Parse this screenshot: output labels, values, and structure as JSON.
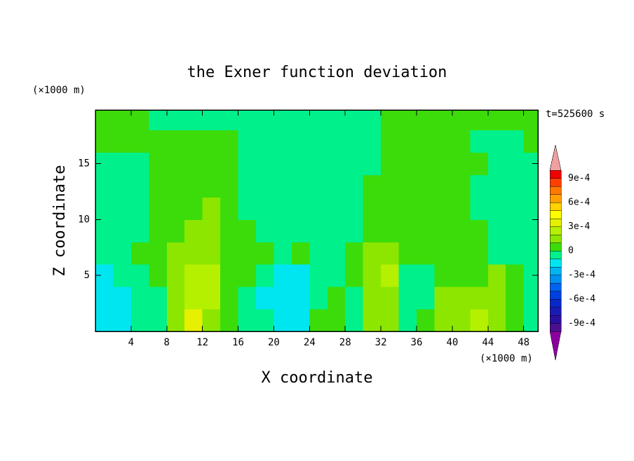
{
  "chart_data": {
    "type": "contour",
    "title": "the Exner function deviation",
    "x_label": "X coordinate",
    "y_label": "Z coordinate",
    "x_unit": "(×1000 m)",
    "y_unit": "(×1000 m)",
    "time_label": "t=525600 s",
    "xlim": [
      0,
      49.6
    ],
    "ylim": [
      0,
      19.8
    ],
    "xticks": [
      4,
      8,
      12,
      16,
      20,
      24,
      28,
      32,
      36,
      40,
      44,
      48
    ],
    "yticks": [
      5,
      10,
      15
    ],
    "x": [
      1,
      3,
      5,
      7,
      9,
      11,
      13,
      15,
      17,
      19,
      21,
      23,
      25,
      27,
      29,
      31,
      33,
      35,
      37,
      39,
      41,
      43,
      45,
      47,
      49
    ],
    "y": [
      1,
      3,
      5,
      7,
      9,
      11,
      13,
      15,
      17,
      19
    ],
    "z": [
      [
        -0.00015,
        -0.00015,
        -5e-05,
        -5e-05,
        0.00015,
        0.00035,
        0.00015,
        5e-05,
        -5e-05,
        -5e-05,
        -0.00015,
        -0.00015,
        5e-05,
        5e-05,
        -5e-05,
        0.00015,
        0.00015,
        -5e-05,
        5e-05,
        0.00015,
        0.00015,
        0.00025,
        0.00015,
        5e-05,
        -5e-05
      ],
      [
        -0.00015,
        -0.00015,
        -5e-05,
        -5e-05,
        0.00015,
        0.00025,
        0.00025,
        5e-05,
        -5e-05,
        -0.00015,
        -0.00015,
        -0.00015,
        -5e-05,
        5e-05,
        -5e-05,
        0.00015,
        0.00015,
        -5e-05,
        -5e-05,
        0.00015,
        0.00015,
        0.00015,
        0.00015,
        5e-05,
        -5e-05
      ],
      [
        -0.00015,
        -5e-05,
        -5e-05,
        5e-05,
        0.00015,
        0.00025,
        0.00025,
        5e-05,
        5e-05,
        -5e-05,
        -0.00015,
        -0.00015,
        -5e-05,
        -5e-05,
        5e-05,
        0.00015,
        0.00025,
        -5e-05,
        -5e-05,
        5e-05,
        5e-05,
        5e-05,
        0.00015,
        5e-05,
        -5e-05
      ],
      [
        -5e-05,
        -5e-05,
        5e-05,
        5e-05,
        0.00015,
        0.00015,
        0.00015,
        5e-05,
        5e-05,
        5e-05,
        -5e-05,
        5e-05,
        -5e-05,
        -5e-05,
        5e-05,
        0.00015,
        0.00015,
        5e-05,
        5e-05,
        5e-05,
        5e-05,
        5e-05,
        -5e-05,
        -5e-05,
        -5e-05
      ],
      [
        -5e-05,
        -5e-05,
        -5e-05,
        5e-05,
        5e-05,
        0.00015,
        0.00015,
        5e-05,
        5e-05,
        -5e-05,
        -5e-05,
        -5e-05,
        -5e-05,
        -5e-05,
        -5e-05,
        5e-05,
        5e-05,
        5e-05,
        5e-05,
        5e-05,
        5e-05,
        5e-05,
        -5e-05,
        -5e-05,
        -5e-05
      ],
      [
        -5e-05,
        -5e-05,
        -5e-05,
        5e-05,
        5e-05,
        5e-05,
        0.00015,
        5e-05,
        -5e-05,
        -5e-05,
        -5e-05,
        -5e-05,
        -5e-05,
        -5e-05,
        -5e-05,
        5e-05,
        5e-05,
        5e-05,
        5e-05,
        5e-05,
        5e-05,
        -5e-05,
        -5e-05,
        -5e-05,
        -5e-05
      ],
      [
        -5e-05,
        -5e-05,
        -5e-05,
        5e-05,
        5e-05,
        5e-05,
        5e-05,
        5e-05,
        -5e-05,
        -5e-05,
        -5e-05,
        -5e-05,
        -5e-05,
        -5e-05,
        -5e-05,
        5e-05,
        5e-05,
        5e-05,
        5e-05,
        5e-05,
        5e-05,
        -5e-05,
        -5e-05,
        -5e-05,
        -5e-05
      ],
      [
        -5e-05,
        -5e-05,
        -5e-05,
        5e-05,
        5e-05,
        5e-05,
        5e-05,
        5e-05,
        -5e-05,
        -5e-05,
        -5e-05,
        -5e-05,
        -5e-05,
        -5e-05,
        -5e-05,
        -5e-05,
        5e-05,
        5e-05,
        5e-05,
        5e-05,
        5e-05,
        5e-05,
        -5e-05,
        -5e-05,
        -5e-05
      ],
      [
        5e-05,
        5e-05,
        5e-05,
        5e-05,
        5e-05,
        5e-05,
        5e-05,
        5e-05,
        -5e-05,
        -5e-05,
        -5e-05,
        -5e-05,
        -5e-05,
        -5e-05,
        -5e-05,
        -5e-05,
        5e-05,
        5e-05,
        5e-05,
        5e-05,
        5e-05,
        -5e-05,
        -5e-05,
        -5e-05,
        5e-05
      ],
      [
        5e-05,
        5e-05,
        5e-05,
        -5e-05,
        -5e-05,
        -5e-05,
        -5e-05,
        -5e-05,
        -5e-05,
        -5e-05,
        -5e-05,
        -5e-05,
        -5e-05,
        -5e-05,
        -5e-05,
        -5e-05,
        5e-05,
        5e-05,
        5e-05,
        5e-05,
        5e-05,
        5e-05,
        5e-05,
        5e-05,
        5e-05
      ]
    ],
    "levels": [
      -0.001,
      -0.0009,
      -0.0008,
      -0.0007,
      -0.0006,
      -0.0005,
      -0.0004,
      -0.0003,
      -0.0002,
      -0.0001,
      0,
      0.0001,
      0.0002,
      0.0003,
      0.0004,
      0.0005,
      0.0006,
      0.0007,
      0.0008,
      0.0009,
      0.001
    ],
    "colors": [
      "#4b0f90",
      "#2a10a0",
      "#1a1ab4",
      "#0a28c8",
      "#0040e0",
      "#0064f0",
      "#0090f0",
      "#00b4f0",
      "#00e6f0",
      "#00f08c",
      "#3cdc0a",
      "#8ce600",
      "#b4f000",
      "#e6f000",
      "#ffff00",
      "#ffd200",
      "#ffa000",
      "#ff7800",
      "#ff4000",
      "#f00000"
    ],
    "over_color": "#f0a0a0",
    "under_color": "#8c00a0",
    "colorbar_ticks": [
      {
        "value": 0.0009,
        "label": "9e-4"
      },
      {
        "value": 0.0006,
        "label": "6e-4"
      },
      {
        "value": 0.0003,
        "label": "3e-4"
      },
      0,
      {
        "value": -0.0003,
        "label": "-3e-4"
      },
      {
        "value": -0.0006,
        "label": "-6e-4"
      },
      {
        "value": -0.0009,
        "label": "-9e-4"
      }
    ]
  }
}
